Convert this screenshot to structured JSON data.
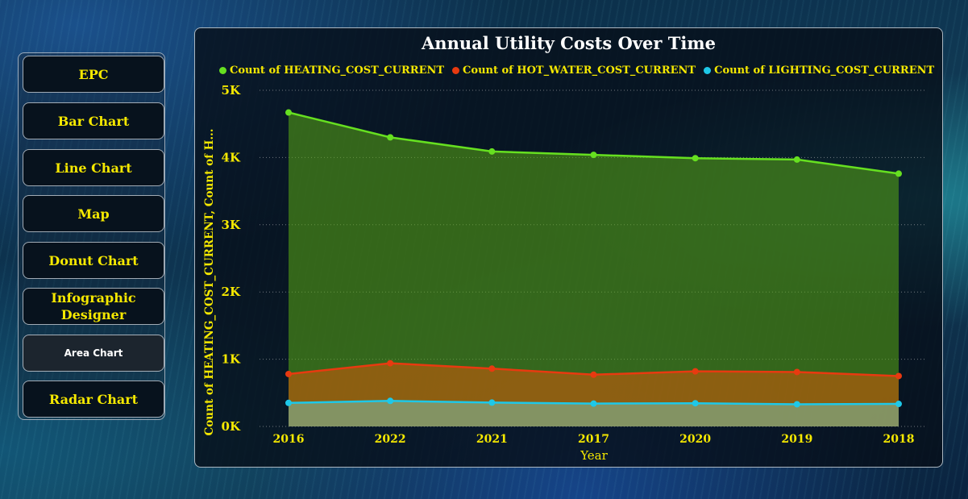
{
  "sidebar": {
    "items": [
      {
        "label": "EPC"
      },
      {
        "label": "Bar Chart"
      },
      {
        "label": "Line Chart"
      },
      {
        "label": "Map"
      },
      {
        "label": "Donut Chart"
      },
      {
        "label": "Infographic Designer"
      },
      {
        "label": "Area Chart"
      },
      {
        "label": "Radar Chart"
      }
    ]
  },
  "colors": {
    "accent": "#f5e800",
    "heating": "#66e020",
    "hot_water": "#e83a10",
    "lighting": "#1ec8e8"
  },
  "chart_data": {
    "type": "area",
    "title": "Annual Utility Costs Over Time",
    "xlabel": "Year",
    "ylabel": "Count of HEATING_COST_CURRENT, Count of H...",
    "categories": [
      "2016",
      "2022",
      "2021",
      "2017",
      "2020",
      "2019",
      "2018"
    ],
    "yticks": [
      "0K",
      "1K",
      "2K",
      "3K",
      "4K",
      "5K"
    ],
    "ylim": [
      0,
      5000
    ],
    "grid": true,
    "legend_position": "top",
    "series": [
      {
        "name": "Count of HEATING_COST_CURRENT",
        "values": [
          4670,
          4300,
          4090,
          4040,
          3990,
          3970,
          3760
        ]
      },
      {
        "name": "Count of HOT_WATER_COST_CURRENT",
        "values": [
          780,
          940,
          860,
          770,
          820,
          810,
          750
        ]
      },
      {
        "name": "Count of LIGHTING_COST_CURRENT",
        "values": [
          350,
          380,
          355,
          340,
          345,
          330,
          335
        ]
      }
    ]
  }
}
